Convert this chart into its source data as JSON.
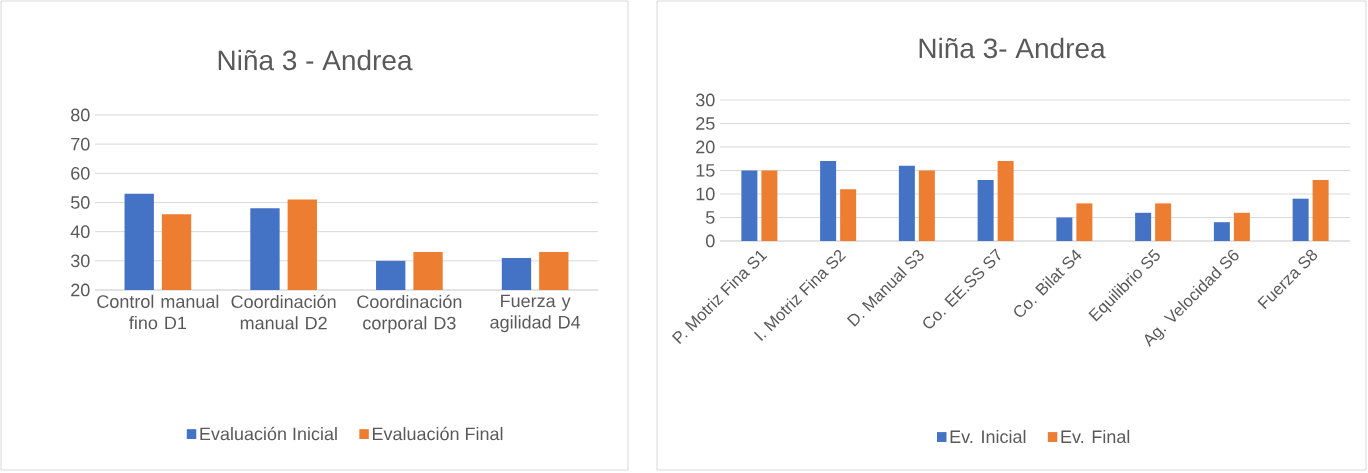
{
  "chart_data": [
    {
      "type": "bar",
      "title": "Niña 3 - Andrea",
      "categories": [
        "Control manual fino D1",
        "Coordinación manual D2",
        "Coordinación corporal D3",
        "Fuerza y agilidad D4"
      ],
      "series": [
        {
          "name": "Evaluación Inicial",
          "color": "#4472c4",
          "values": [
            53,
            48,
            30,
            31
          ]
        },
        {
          "name": "Evaluación Final",
          "color": "#ed7d31",
          "values": [
            46,
            51,
            33,
            33
          ]
        }
      ],
      "ylim": [
        20,
        80
      ],
      "yticks": [
        20,
        30,
        40,
        50,
        60,
        70,
        80
      ],
      "grid": "y",
      "legend": "bottom"
    },
    {
      "type": "bar",
      "title": "Niña 3- Andrea",
      "categories": [
        "P. Motriz Fina S1",
        "I. Motriz Fina S2",
        "D. Manual S3",
        "Co. EE.SS S7",
        "Co. Bilat S4",
        "Equilibrio S5",
        "Ag. Velocidad S6",
        "Fuerza S8"
      ],
      "series": [
        {
          "name": "Ev. Inicial",
          "color": "#4472c4",
          "values": [
            15,
            17,
            16,
            13,
            5,
            6,
            4,
            9
          ]
        },
        {
          "name": "Ev. Final",
          "color": "#ed7d31",
          "values": [
            15,
            11,
            15,
            17,
            8,
            8,
            6,
            13
          ]
        }
      ],
      "ylim": [
        0,
        30
      ],
      "yticks": [
        0,
        5,
        10,
        15,
        20,
        25,
        30
      ],
      "grid": "y",
      "legend": "bottom"
    }
  ]
}
